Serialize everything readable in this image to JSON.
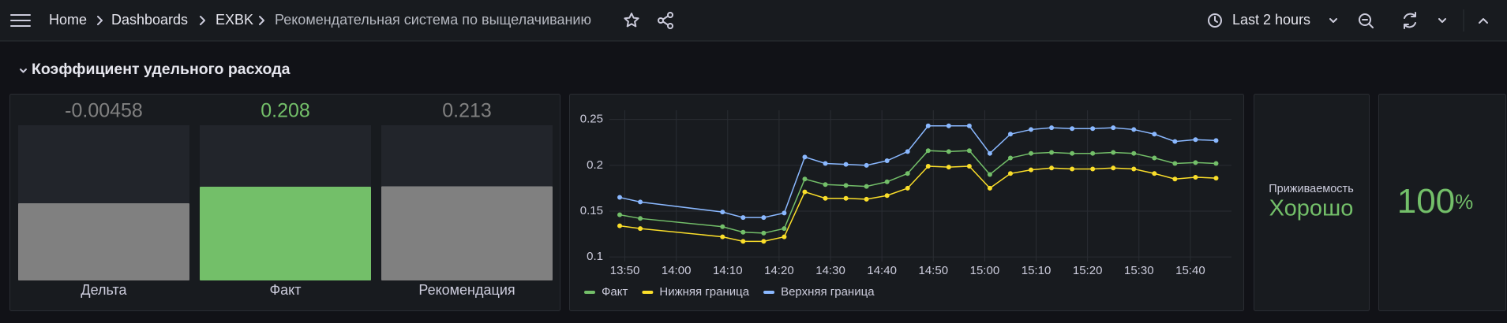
{
  "nav": {
    "breadcrumbs": [
      "Home",
      "Dashboards",
      "EXBK",
      "Рекомендательная система по выщелачиванию"
    ],
    "time_range": "Last 2 hours"
  },
  "row_title": "Коэффициент удельного расхода",
  "bar_gauge": {
    "lim": [
      -1,
      1
    ],
    "items": [
      {
        "name": "Дельта",
        "value": -0.00458,
        "color": "#808080"
      },
      {
        "name": "Факт",
        "value": 0.208,
        "color": "#73bf69"
      },
      {
        "name": "Рекомендация",
        "value": 0.213,
        "color": "#808080"
      }
    ]
  },
  "chart_data": {
    "type": "line",
    "x": [
      "13:49",
      "13:53",
      "14:09",
      "14:13",
      "14:17",
      "14:21",
      "14:25",
      "14:29",
      "14:33",
      "14:37",
      "14:41",
      "14:45",
      "14:49",
      "14:53",
      "14:57",
      "15:01",
      "15:05",
      "15:09",
      "15:13",
      "15:17",
      "15:21",
      "15:25",
      "15:29",
      "15:33",
      "15:37",
      "15:41",
      "15:45"
    ],
    "xlim": [
      "13:47",
      "15:48"
    ],
    "xticks": [
      "13:50",
      "14:00",
      "14:10",
      "14:20",
      "14:30",
      "14:40",
      "14:50",
      "15:00",
      "15:10",
      "15:20",
      "15:30",
      "15:40"
    ],
    "ylim": [
      0.095,
      0.26
    ],
    "yticks": [
      0.1,
      0.15,
      0.2,
      0.25
    ],
    "grid": true,
    "series": [
      {
        "name": "Факт",
        "color": "#73bf69",
        "values": [
          0.146,
          0.142,
          0.133,
          0.127,
          0.126,
          0.131,
          0.185,
          0.179,
          0.178,
          0.177,
          0.182,
          0.191,
          0.216,
          0.215,
          0.216,
          0.19,
          0.208,
          0.213,
          0.214,
          0.213,
          0.213,
          0.214,
          0.213,
          0.208,
          0.202,
          0.203,
          0.202
        ]
      },
      {
        "name": "Нижняя граница",
        "color": "#fade2a",
        "values": [
          0.134,
          0.131,
          0.122,
          0.117,
          0.117,
          0.122,
          0.171,
          0.164,
          0.164,
          0.163,
          0.167,
          0.175,
          0.199,
          0.198,
          0.199,
          0.175,
          0.191,
          0.195,
          0.197,
          0.196,
          0.196,
          0.197,
          0.196,
          0.191,
          0.185,
          0.187,
          0.186
        ]
      },
      {
        "name": "Верхняя граница",
        "color": "#8ab8ff",
        "values": [
          0.165,
          0.16,
          0.149,
          0.143,
          0.143,
          0.148,
          0.209,
          0.202,
          0.201,
          0.2,
          0.205,
          0.215,
          0.243,
          0.243,
          0.243,
          0.213,
          0.234,
          0.239,
          0.241,
          0.24,
          0.24,
          0.241,
          0.239,
          0.234,
          0.226,
          0.228,
          0.227
        ]
      }
    ]
  },
  "stat_status": {
    "label": "Приживаемость",
    "value": "Хорошо",
    "color": "#73bf69"
  },
  "stat_percent": {
    "value": 100,
    "unit": "%",
    "color": "#73bf69"
  }
}
